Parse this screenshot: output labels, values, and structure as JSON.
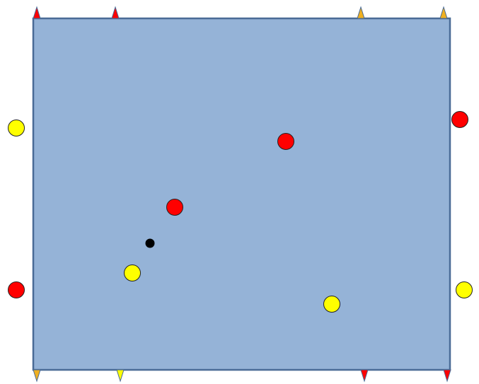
{
  "colors": {
    "background": "#ffffff",
    "board_fill": "#95b3d7",
    "board_stroke": "#4a6b96",
    "red": "#ff0000",
    "yellow": "#ffff00",
    "orange": "#f0b020",
    "black": "#000000",
    "outline": "#222222"
  },
  "markers": [
    {
      "id": "top-1",
      "edge": "top",
      "color": "red",
      "direction": "up"
    },
    {
      "id": "top-2",
      "edge": "top",
      "color": "red",
      "direction": "up"
    },
    {
      "id": "top-3",
      "edge": "top",
      "color": "orange",
      "direction": "up"
    },
    {
      "id": "top-4",
      "edge": "top",
      "color": "orange",
      "direction": "up"
    },
    {
      "id": "bottom-1",
      "edge": "bottom",
      "color": "orange",
      "direction": "down"
    },
    {
      "id": "bottom-2",
      "edge": "bottom",
      "color": "yellow",
      "direction": "down"
    },
    {
      "id": "bottom-3",
      "edge": "bottom",
      "color": "red",
      "direction": "down"
    },
    {
      "id": "bottom-4",
      "edge": "bottom",
      "color": "red",
      "direction": "down"
    }
  ],
  "outer_balls": [
    {
      "id": "left-upper",
      "side": "left",
      "color": "yellow"
    },
    {
      "id": "left-lower",
      "side": "left",
      "color": "red"
    },
    {
      "id": "right-upper",
      "side": "right",
      "color": "red"
    },
    {
      "id": "right-lower",
      "side": "right",
      "color": "yellow"
    }
  ],
  "inner_balls": [
    {
      "id": "red-upper-right",
      "color": "red"
    },
    {
      "id": "red-center",
      "color": "red"
    },
    {
      "id": "yellow-lower-left",
      "color": "yellow"
    },
    {
      "id": "yellow-lower-right",
      "color": "yellow"
    }
  ],
  "center_point": {
    "color": "black"
  }
}
